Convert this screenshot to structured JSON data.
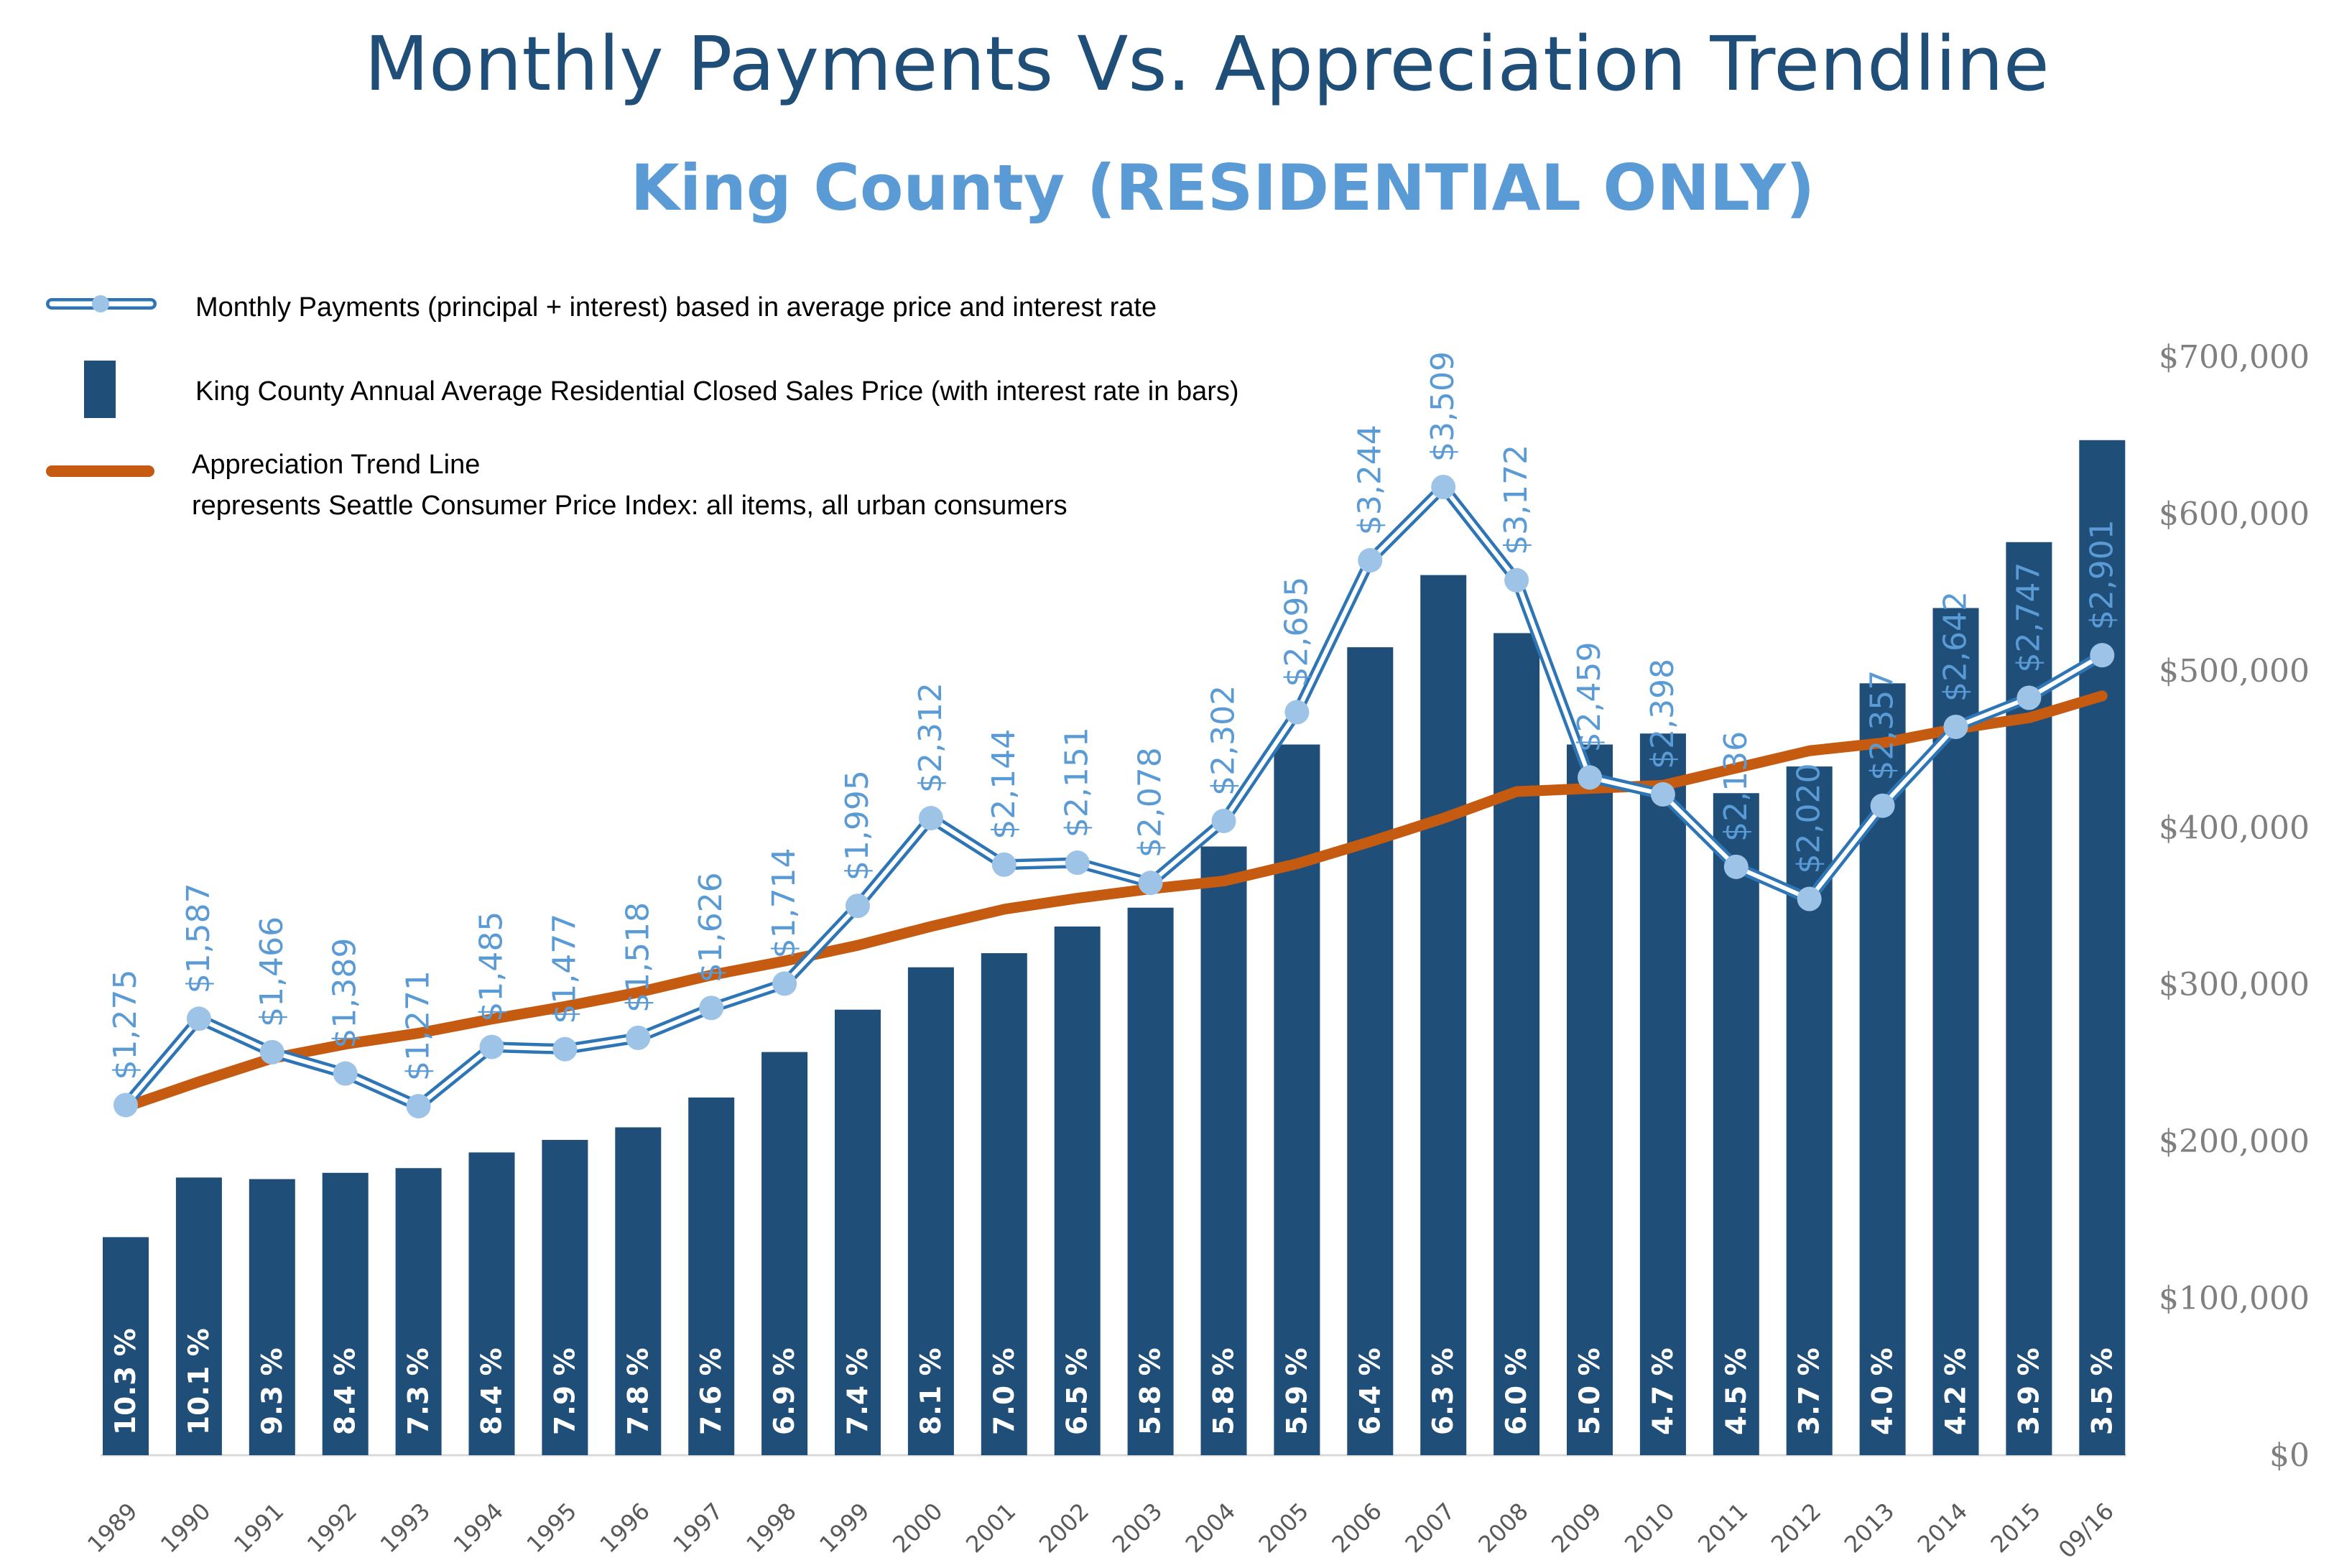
{
  "colors": {
    "bar": "#1f4e79",
    "payment_line": "#2e75b6",
    "payment_marker": "#9dc3e6",
    "payment_label": "#5b9bd5",
    "trend": "#c55a11",
    "title": "#1f4e79",
    "subtitle": "#5b9bd5",
    "axis_text": "#7f7f7f",
    "rate_text": "#ffffff"
  },
  "chart_data": {
    "type": "bar",
    "title": "Monthly Payments Vs. Appreciation Trendline",
    "subtitle": "King County (RESIDENTIAL ONLY)",
    "categories": [
      "1989",
      "1990",
      "1991",
      "1992",
      "1993",
      "1994",
      "1995",
      "1996",
      "1997",
      "1998",
      "1999",
      "2000",
      "2001",
      "2002",
      "2003",
      "2004",
      "2005",
      "2006",
      "2007",
      "2008",
      "2009",
      "2010",
      "2011",
      "2012",
      "2013",
      "2014",
      "2015",
      "09/16"
    ],
    "ylim": [
      0,
      700000
    ],
    "y_ticks": [
      "$0",
      "$100,000",
      "$200,000",
      "$300,000",
      "$400,000",
      "$500,000",
      "$600,000",
      "$700,000"
    ],
    "y_axis_side": "right",
    "grid": false,
    "legend_position": "top-left",
    "series": [
      {
        "name": "King County Annual Average Residential Closed Sales Price (with interest rate in bars)",
        "type": "bar",
        "values": [
          139000,
          177000,
          176000,
          180000,
          183000,
          193000,
          201000,
          209000,
          228000,
          257000,
          284000,
          311000,
          320000,
          337000,
          349000,
          388000,
          453000,
          515000,
          561000,
          524000,
          453000,
          460000,
          422000,
          439000,
          492000,
          540000,
          582000,
          647000
        ],
        "bar_labels": [
          "10.3 %",
          "10.1 %",
          "9.3 %",
          "8.4 %",
          "7.3 %",
          "8.4 %",
          "7.9 %",
          "7.8 %",
          "7.6 %",
          "6.9 %",
          "7.4 %",
          "8.1 %",
          "7.0 %",
          "6.5 %",
          "5.8 %",
          "5.8 %",
          "5.9 %",
          "6.4 %",
          "6.3 %",
          "6.0 %",
          "5.0 %",
          "4.7 %",
          "4.5 %",
          "3.7 %",
          "4.0 %",
          "4.2 %",
          "3.9 %",
          "3.5 %"
        ]
      },
      {
        "name": "Monthly Payments (principal + interest) based in average price and interest rate",
        "type": "line",
        "values": [
          1275,
          1587,
          1466,
          1389,
          1271,
          1485,
          1477,
          1518,
          1626,
          1714,
          1995,
          2312,
          2144,
          2151,
          2078,
          2302,
          2695,
          3244,
          3509,
          3172,
          2459,
          2398,
          2136,
          2020,
          2357,
          2642,
          2747,
          2901
        ],
        "point_labels": [
          "$1,275",
          "$1,587",
          "$1,466",
          "$1,389",
          "$1,271",
          "$1,485",
          "$1,477",
          "$1,518",
          "$1,626",
          "$1,714",
          "$1,995",
          "$2,312",
          "$2,144",
          "$2,151",
          "$2,078",
          "$2,302",
          "$2,695",
          "$3,244",
          "$3,509",
          "$3,172",
          "$2,459",
          "$2,398",
          "$2,136",
          "$2,020",
          "$2,357",
          "$2,642",
          "$2,747",
          "$2,901"
        ]
      },
      {
        "name": "Appreciation Trend Line",
        "description": "represents Seattle Consumer Price Index: all items, all urban consumers",
        "type": "line",
        "values": [
          222000,
          238000,
          253000,
          262000,
          269000,
          278000,
          286000,
          295000,
          306000,
          315000,
          325000,
          337000,
          348000,
          355000,
          361000,
          366000,
          377000,
          391000,
          406000,
          423000,
          425000,
          427000,
          438000,
          449000,
          454000,
          463000,
          470000,
          484000
        ]
      }
    ]
  }
}
